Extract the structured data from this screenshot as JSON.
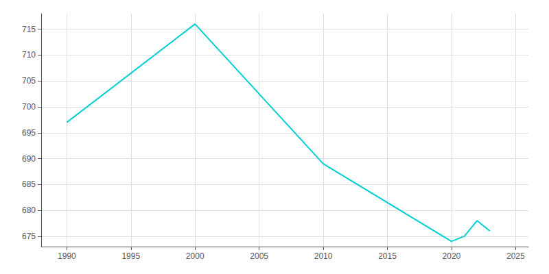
{
  "chart_data": {
    "type": "line",
    "x": [
      1990,
      2000,
      2010,
      2020,
      2021,
      2022,
      2023
    ],
    "values": [
      697,
      716,
      689,
      674,
      675,
      678,
      676
    ],
    "color": "#00CED1",
    "xlim": [
      1988,
      2026
    ],
    "xticks": [
      1990,
      1995,
      2000,
      2005,
      2010,
      2015,
      2020,
      2025
    ],
    "ylim": [
      673,
      718
    ],
    "yticks": [
      675,
      680,
      685,
      690,
      695,
      700,
      705,
      710,
      715
    ],
    "grid": true
  }
}
